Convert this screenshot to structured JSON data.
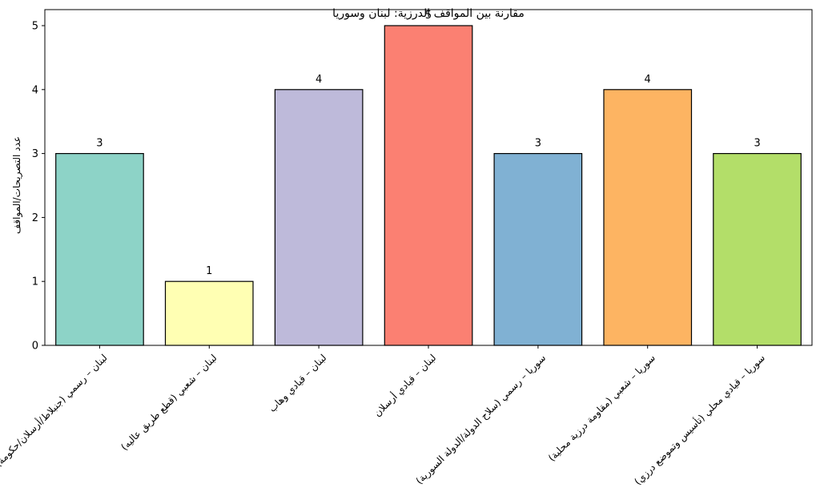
{
  "chart_data": {
    "type": "bar",
    "title": "مقارنة بين المواقف الدرزية: لبنان وسوريا",
    "xlabel": "",
    "ylabel": "عدد التصريحات/المواقف",
    "ylim": [
      0,
      5.25
    ],
    "yticks": [
      0,
      1,
      2,
      3,
      4,
      5
    ],
    "grid": false,
    "categories": [
      "لبنان – رسمي (جنبلاط/أرسلان/حكومة)",
      "لبنان – شعبي (قطع طريق عاليه)",
      "لبنان – قيادي وهاب",
      "لبنان – قيادي أرسلان",
      "سوريا – رسمي (سلاح الدولة/الدولة السورية)",
      "سوريا – شعبي (مقاومة درزية محلية)",
      "سوريا – قيادي محلي (تأسيس وتموضع درزي)"
    ],
    "values": [
      3,
      1,
      4,
      5,
      3,
      4,
      3
    ],
    "colors": [
      "#8dd3c7",
      "#ffffb3",
      "#bebada",
      "#fb8072",
      "#80b1d3",
      "#fdb462",
      "#b3de69"
    ],
    "data_labels": [
      "3",
      "1",
      "4",
      "5",
      "3",
      "4",
      "3"
    ]
  }
}
